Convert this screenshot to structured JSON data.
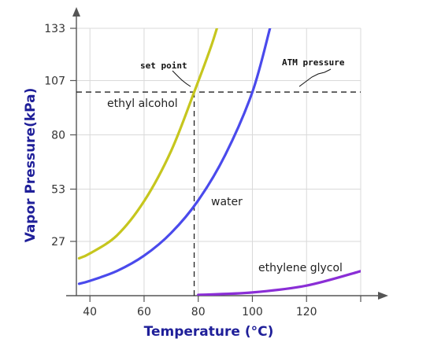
{
  "chart_data": {
    "type": "line",
    "xlabel": "Temperature (°C)",
    "ylabel": "Vapor Pressure(kPa)",
    "xlim": [
      35,
      140
    ],
    "ylim": [
      0,
      133
    ],
    "x_ticks": [
      40,
      60,
      80,
      100,
      120
    ],
    "y_ticks": [
      27,
      53,
      80,
      107,
      133
    ],
    "grid": true,
    "series": [
      {
        "name": "ethyl alcohol",
        "color": "#c6c61e",
        "x": [
          36,
          40,
          50,
          60,
          70,
          78.5,
          85,
          90
        ],
        "y": [
          18.6,
          21,
          30,
          47,
          72,
          101.3,
          125,
          147
        ]
      },
      {
        "name": "water",
        "color": "#4a4aec",
        "x": [
          36,
          40,
          50,
          60,
          70,
          80,
          90,
          100,
          106.5
        ],
        "y": [
          5.9,
          7.4,
          12.3,
          19.9,
          31.2,
          47.4,
          70.1,
          101.3,
          133
        ]
      },
      {
        "name": "ethylene glycol",
        "color": "#8a2ed6",
        "x": [
          80,
          100,
          120,
          140
        ],
        "y": [
          0.4,
          1.6,
          5.0,
          12.2
        ]
      }
    ],
    "reference_lines": [
      {
        "name": "ATM pressure",
        "axis": "y",
        "value": 101.3
      },
      {
        "name": "set point",
        "axis": "x",
        "value": 78.5
      }
    ],
    "annotations": {
      "set_point": "set point",
      "atm_pressure": "ATM pressure"
    }
  }
}
